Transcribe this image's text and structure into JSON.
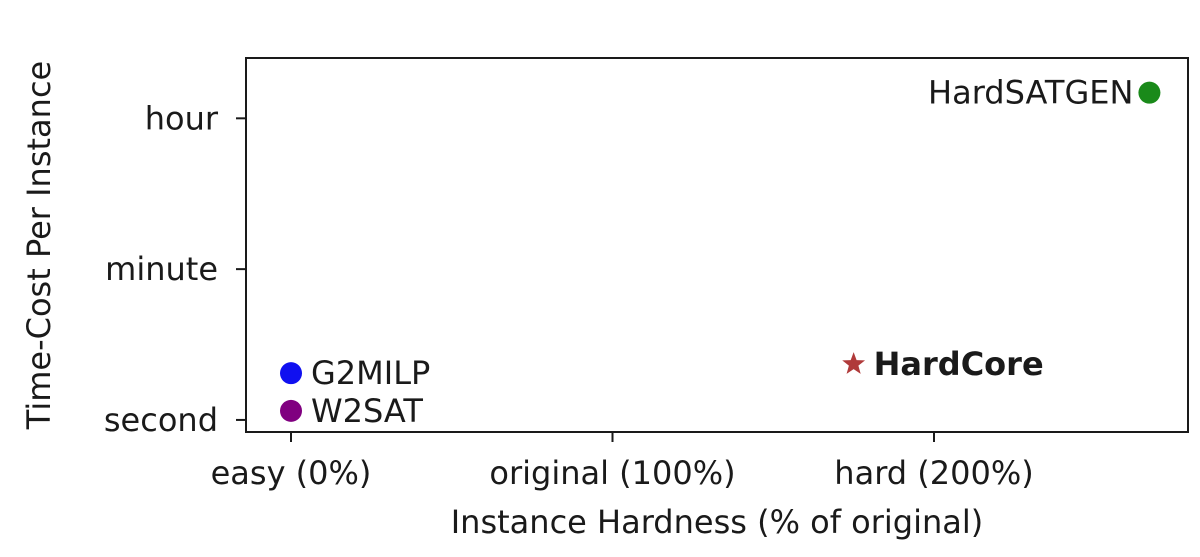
{
  "chart_data": {
    "type": "scatter",
    "title": "",
    "xlabel": "Instance Hardness (% of original)",
    "ylabel": "Time-Cost Per Instance",
    "x_ticks": [
      {
        "value": 0,
        "label": "easy (0%)"
      },
      {
        "value": 100,
        "label": "original (100%)"
      },
      {
        "value": 200,
        "label": "hard (200%)"
      }
    ],
    "y_ticks": [
      {
        "value": 0,
        "label": "second"
      },
      {
        "value": 1,
        "label": "minute"
      },
      {
        "value": 2,
        "label": "hour"
      }
    ],
    "xlim": [
      -14,
      279
    ],
    "ylim": [
      -0.08,
      2.4
    ],
    "grid": false,
    "points": [
      {
        "label": "HardSATGEN",
        "x": 267,
        "y": 2.17,
        "color": "#1a8a1a",
        "marker": "circle",
        "label_side": "left",
        "bold": false
      },
      {
        "label": "G2MILP",
        "x": 0,
        "y": 0.31,
        "color": "#1010f0",
        "marker": "circle",
        "label_side": "right",
        "bold": false
      },
      {
        "label": "W2SAT",
        "x": 0,
        "y": 0.06,
        "color": "#800080",
        "marker": "circle",
        "label_side": "right",
        "bold": false
      },
      {
        "label": "HardCore",
        "x": 175,
        "y": 0.37,
        "color": "#b03a3a",
        "marker": "star",
        "label_side": "right",
        "bold": true
      }
    ]
  }
}
